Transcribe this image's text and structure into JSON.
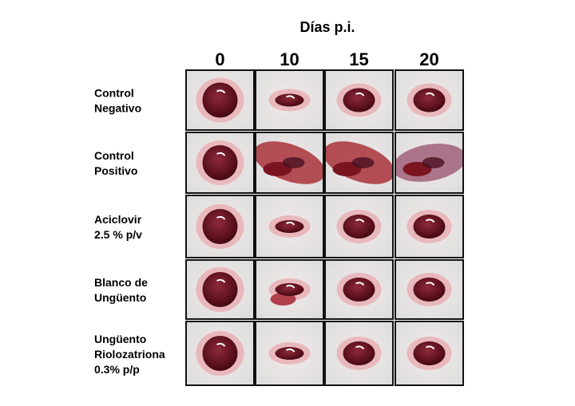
{
  "figure": {
    "header": "Días p.i.",
    "columns": [
      "0",
      "10",
      "15",
      "20"
    ],
    "rows": [
      {
        "lines": [
          "Control",
          "Negativo"
        ]
      },
      {
        "lines": [
          "Control",
          "Positivo"
        ]
      },
      {
        "lines": [
          "Aciclovir",
          "2.5 % p/v"
        ]
      },
      {
        "lines": [
          "Blanco de",
          "Ungüento"
        ]
      },
      {
        "lines": [
          "Ungüento",
          "Riolozatriona",
          "0.3% p/p"
        ]
      }
    ]
  }
}
